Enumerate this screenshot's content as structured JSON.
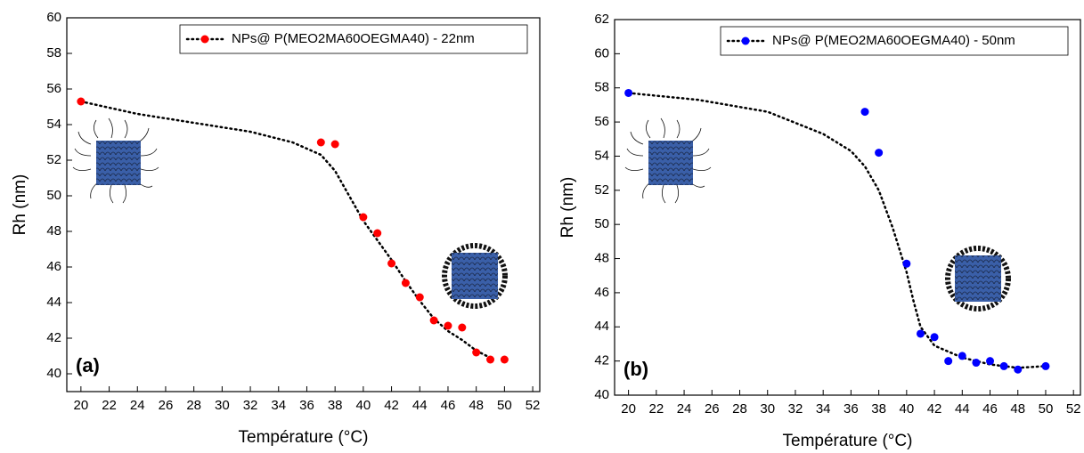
{
  "chart_data": [
    {
      "type": "scatter",
      "panel_label": "(a)",
      "x_label": "Température (°C)",
      "y_label": "Rh (nm)",
      "xlim": [
        19,
        52.5
      ],
      "xticks": [
        20,
        22,
        24,
        26,
        28,
        30,
        32,
        34,
        36,
        38,
        40,
        42,
        44,
        46,
        48,
        50,
        52
      ],
      "ylim": [
        39,
        60
      ],
      "yticks": [
        40,
        42,
        44,
        46,
        48,
        50,
        52,
        54,
        56,
        58,
        60
      ],
      "legend": "upper right",
      "series": [
        {
          "name": "NPs@ P(MEO2MA60OEGMA40) - 22nm",
          "color": "#ff0000",
          "x": [
            20,
            37,
            38,
            40,
            41,
            42,
            43,
            44,
            45,
            46,
            47,
            48,
            49,
            50
          ],
          "values": [
            55.3,
            53.0,
            52.9,
            48.8,
            47.9,
            46.2,
            45.1,
            44.3,
            43.0,
            42.7,
            42.6,
            41.2,
            40.8,
            40.8
          ],
          "fit": {
            "x": [
              20,
              24,
              28,
              32,
              35,
              37,
              38,
              39,
              40,
              41,
              42,
              43,
              44,
              45,
              46,
              47,
              48,
              49
            ],
            "values": [
              55.3,
              54.6,
              54.1,
              53.6,
              53.0,
              52.3,
              51.4,
              50.0,
              48.6,
              47.5,
              46.4,
              45.2,
              44.1,
              43.1,
              42.4,
              41.9,
              41.3,
              40.9
            ]
          }
        }
      ]
    },
    {
      "type": "scatter",
      "panel_label": "(b)",
      "x_label": "Température (°C)",
      "y_label": "Rh (nm)",
      "xlim": [
        19,
        52.5
      ],
      "xticks": [
        20,
        22,
        24,
        26,
        28,
        30,
        32,
        34,
        36,
        38,
        40,
        42,
        44,
        46,
        48,
        50,
        52
      ],
      "ylim": [
        40,
        62
      ],
      "yticks": [
        40,
        42,
        44,
        46,
        48,
        50,
        52,
        54,
        56,
        58,
        60,
        62
      ],
      "legend": "upper right",
      "series": [
        {
          "name": "NPs@ P(MEO2MA60OEGMA40) - 50nm",
          "color": "#0000ff",
          "x": [
            20,
            37,
            38,
            40,
            41,
            42,
            43,
            44,
            45,
            46,
            47,
            48,
            50
          ],
          "values": [
            57.7,
            56.6,
            54.2,
            47.7,
            43.6,
            43.4,
            42.0,
            42.3,
            41.9,
            42.0,
            41.7,
            41.5,
            41.7
          ],
          "fit": {
            "x": [
              20,
              25,
              30,
              34,
              36,
              37,
              38,
              39,
              40,
              40.5,
              41,
              42,
              44,
              46,
              48,
              50
            ],
            "values": [
              57.7,
              57.3,
              56.6,
              55.3,
              54.3,
              53.4,
              52.0,
              49.8,
              47.2,
              45.5,
              44.0,
              42.9,
              42.2,
              41.8,
              41.6,
              41.7
            ]
          }
        }
      ]
    }
  ]
}
